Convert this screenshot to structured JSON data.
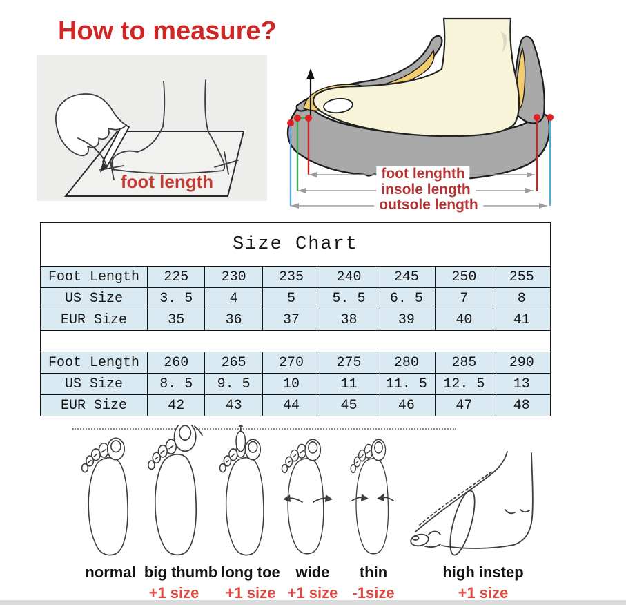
{
  "header": {
    "title": "How to measure?"
  },
  "measure_diagrams": {
    "left_caption": "foot length",
    "dimension_labels": [
      "foot lenghth",
      "insole length",
      "outsole length"
    ]
  },
  "size_chart": {
    "title": "Size Chart",
    "sections": [
      {
        "rows": [
          {
            "label": "Foot Length",
            "values": [
              "225",
              "230",
              "235",
              "240",
              "245",
              "250",
              "255"
            ]
          },
          {
            "label": "US Size",
            "values": [
              "3. 5",
              "4",
              "5",
              "5. 5",
              "6. 5",
              "7",
              "8"
            ]
          },
          {
            "label": "EUR Size",
            "values": [
              "35",
              "36",
              "37",
              "38",
              "39",
              "40",
              "41"
            ]
          }
        ]
      },
      {
        "rows": [
          {
            "label": "Foot Length",
            "values": [
              "260",
              "265",
              "270",
              "275",
              "280",
              "285",
              "290"
            ]
          },
          {
            "label": "US Size",
            "values": [
              "8. 5",
              "9. 5",
              "10",
              "11",
              "11. 5",
              "12. 5",
              "13"
            ]
          },
          {
            "label": "EUR Size",
            "values": [
              "42",
              "43",
              "44",
              "45",
              "46",
              "47",
              "48"
            ]
          }
        ]
      }
    ]
  },
  "foot_types": [
    {
      "name": "normal",
      "adjustment": ""
    },
    {
      "name": "big thumb",
      "adjustment": "+1 size"
    },
    {
      "name": "long toe",
      "adjustment": "+1 size"
    },
    {
      "name": "wide",
      "adjustment": "+1 size"
    },
    {
      "name": "thin",
      "adjustment": "-1size"
    },
    {
      "name": "high instep",
      "adjustment": "+1 size"
    }
  ],
  "colors": {
    "heading_red": "#d12626",
    "caption_red": "#c23b34",
    "dimension_label_red": "#b23434",
    "size_adjust_red": "#e0463e",
    "table_cell_blue": "#d9eaf2",
    "outsole_gray": "#a9a9a9",
    "insole_yellow": "#f2cd6e",
    "foot_cream": "#f8f4da",
    "line_blue": "#55aadc",
    "line_green": "#3db24d",
    "line_red": "#cc2424"
  }
}
